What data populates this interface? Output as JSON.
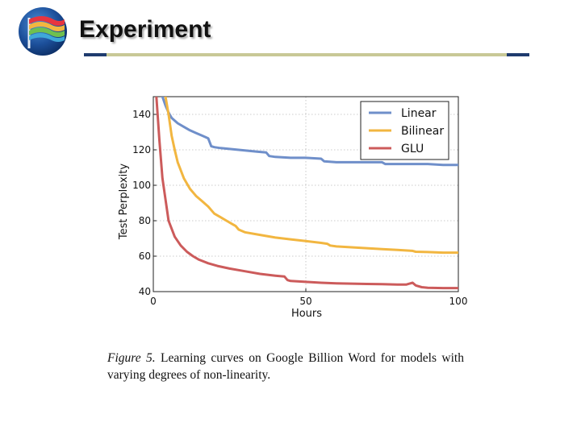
{
  "slide": {
    "title": "Experiment",
    "logo_icon": "flag-globe-icon",
    "colors": {
      "rule_dark": "#1f3b6e",
      "rule_light": "#c8c896"
    }
  },
  "caption": {
    "figure_label": "Figure 5.",
    "text": " Learning curves on Google Billion Word for models with varying degrees of non-linearity."
  },
  "chart_data": {
    "type": "line",
    "xlabel": "Hours",
    "ylabel": "Test Perplexity",
    "xlim": [
      0,
      100
    ],
    "ylim": [
      40,
      150
    ],
    "xticks": [
      0,
      50,
      100
    ],
    "yticks": [
      40,
      60,
      80,
      100,
      120,
      140
    ],
    "grid": true,
    "legend_position": "top-right",
    "series": [
      {
        "name": "Linear",
        "color": "#6f8fca",
        "x": [
          3,
          4,
          5,
          6,
          8,
          10,
          12,
          14,
          16,
          18,
          19,
          20,
          22,
          25,
          28,
          31,
          34,
          37,
          38,
          40,
          45,
          50,
          55,
          56,
          60,
          65,
          70,
          75,
          76,
          80,
          85,
          90,
          95,
          100
        ],
        "y": [
          150,
          145,
          141,
          138,
          135,
          133,
          131,
          129.5,
          128,
          126.5,
          122,
          121.5,
          121,
          120.5,
          120,
          119.5,
          119,
          118.5,
          116.5,
          116,
          115.5,
          115.5,
          115,
          113.5,
          113,
          113,
          113,
          113,
          112,
          112,
          112,
          112,
          111.5,
          111.5
        ]
      },
      {
        "name": "Bilinear",
        "color": "#f2b640",
        "x": [
          4,
          5,
          6,
          7,
          8,
          10,
          12,
          14,
          16,
          18,
          19,
          20,
          22,
          24,
          26,
          27,
          28,
          30,
          35,
          40,
          45,
          50,
          55,
          57,
          58,
          60,
          65,
          70,
          75,
          80,
          85,
          86,
          90,
          95,
          100
        ],
        "y": [
          150,
          140,
          128,
          120,
          113,
          104,
          98,
          94,
          91,
          88,
          86,
          84,
          82,
          80,
          78,
          77,
          75,
          73.5,
          72,
          70.5,
          69.5,
          68.5,
          67.5,
          67,
          66,
          65.5,
          65,
          64.5,
          64,
          63.5,
          63,
          62.5,
          62.3,
          62,
          62
        ]
      },
      {
        "name": "GLU",
        "color": "#cc5b5b",
        "x": [
          1,
          2,
          3,
          4,
          5,
          7,
          9,
          11,
          13,
          15,
          18,
          21,
          25,
          30,
          35,
          40,
          43,
          44,
          45,
          50,
          55,
          60,
          65,
          70,
          75,
          80,
          83,
          84,
          85,
          86,
          88,
          90,
          95,
          100
        ],
        "y": [
          150,
          125,
          104,
          92,
          80,
          71,
          66,
          62.5,
          60,
          58,
          56,
          54.5,
          53,
          51.5,
          50,
          49,
          48.5,
          46.5,
          46,
          45.5,
          45,
          44.7,
          44.5,
          44.3,
          44.2,
          44,
          44,
          44.5,
          45,
          43.5,
          42.5,
          42.2,
          42,
          42
        ]
      }
    ]
  }
}
